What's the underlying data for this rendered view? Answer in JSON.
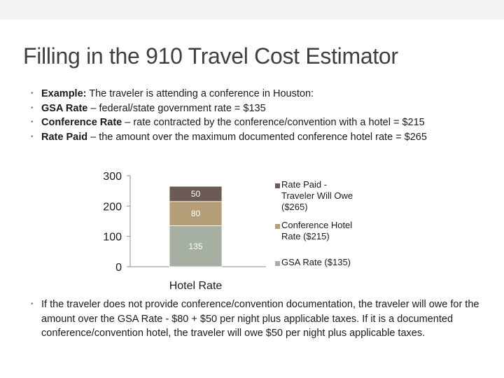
{
  "slide": {
    "title": "Filling in the 910 Travel Cost Estimator",
    "bullets": [
      {
        "lead": "Example:",
        "text": " The traveler is attending a conference in Houston:"
      },
      {
        "lead": "GSA Rate",
        "text": " – federal/state government rate = $135"
      },
      {
        "lead": "Conference Rate",
        "text": " – rate contracted by the conference/convention with a hotel = $215"
      },
      {
        "lead": "Rate Paid",
        "text": " – the amount over the maximum documented conference hotel rate = $265"
      }
    ],
    "footer_text": "If the traveler does not provide conference/convention documentation, the traveler will owe for the amount over the GSA Rate - $80 + $50 per night plus applicable taxes. If it is a documented conference/convention hotel, the traveler will owe $50 per night plus applicable taxes."
  },
  "colors": {
    "title": "#3f3f3f",
    "gsa": "#a6b0a2",
    "conference": "#b59d78",
    "rate_paid": "#6b5a55",
    "axis": "#8c8c8c"
  },
  "chart_data": {
    "type": "bar",
    "stacked": true,
    "categories": [
      "Hotel Rate"
    ],
    "xlabel": "",
    "ylabel": "",
    "ylim": [
      0,
      300
    ],
    "yticks": [
      0,
      100,
      200,
      300
    ],
    "legend_position": "right",
    "series": [
      {
        "name": "GSA Rate ($135)",
        "values": [
          135
        ],
        "color": "#a6b0a2",
        "label": "135"
      },
      {
        "name": "Conference Hotel Rate ($215)",
        "values": [
          80
        ],
        "color": "#b59d78",
        "label": "80"
      },
      {
        "name": "Rate Paid - Traveler Will Owe ($265)",
        "values": [
          50
        ],
        "color": "#6b5a55",
        "label": "50"
      }
    ]
  }
}
